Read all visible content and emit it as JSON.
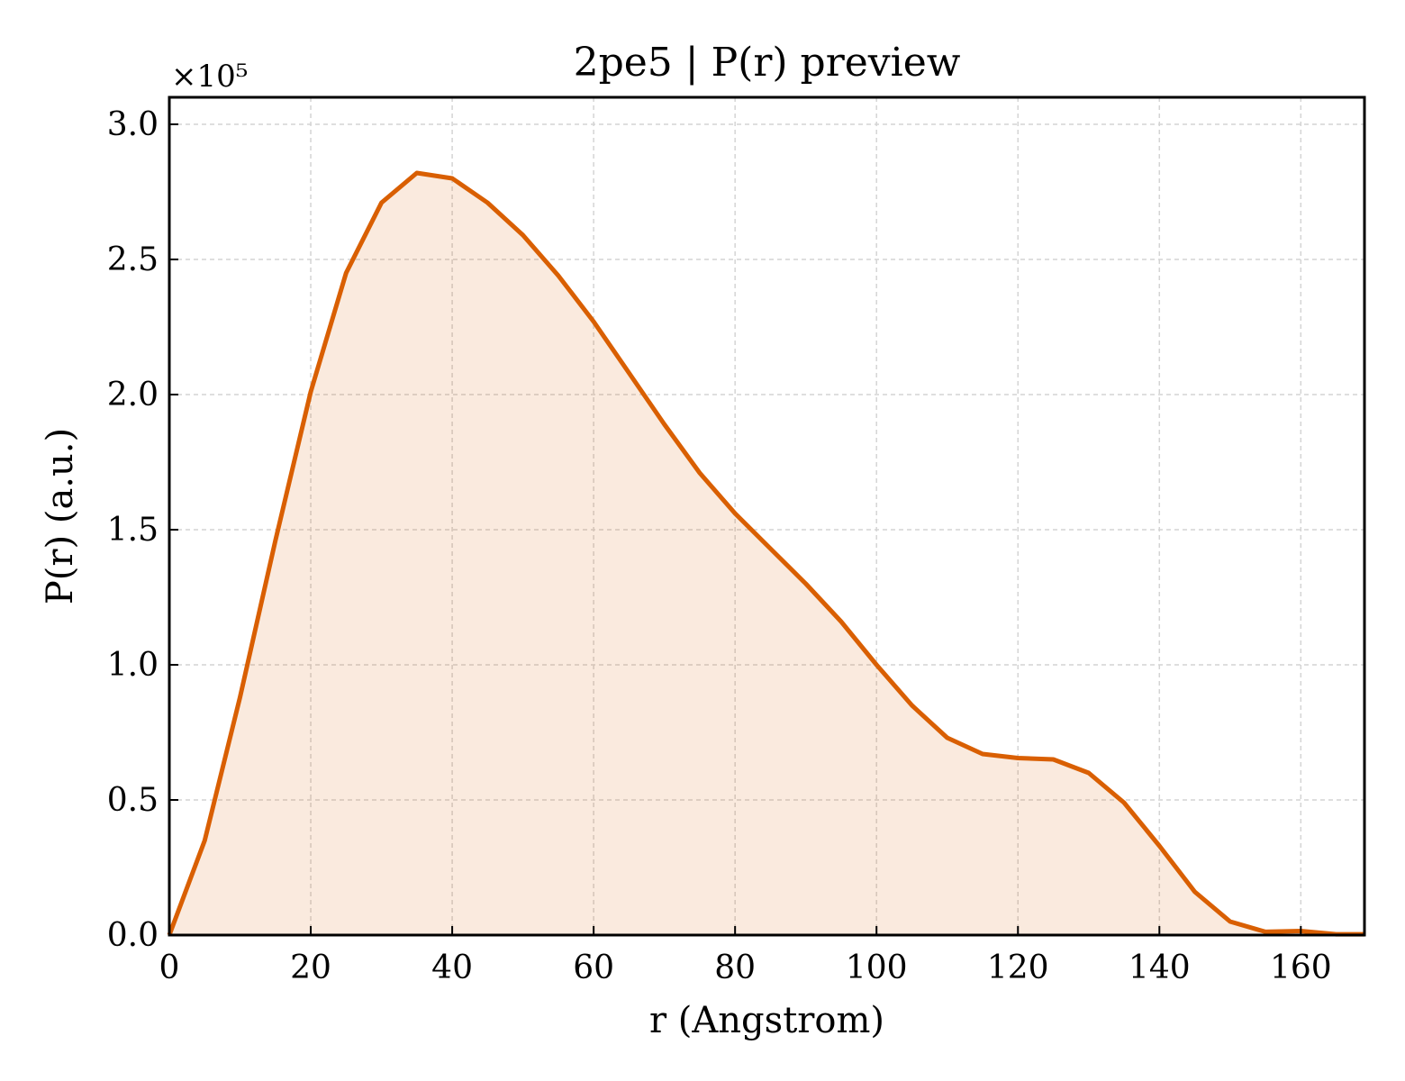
{
  "chart_data": {
    "type": "area",
    "title": "2pe5 | P(r) preview",
    "xlabel": "r (Angstrom)",
    "ylabel": "P(r) (a.u.)",
    "y_scale_label": "×10⁵",
    "y_multiplier": 100000,
    "xlim": [
      0,
      169
    ],
    "ylim": [
      0,
      3.1
    ],
    "x_ticks": [
      0,
      20,
      40,
      60,
      80,
      100,
      120,
      140,
      160
    ],
    "x_tick_labels": [
      "0",
      "20",
      "40",
      "60",
      "80",
      "100",
      "120",
      "140",
      "160"
    ],
    "y_ticks": [
      0,
      0.5,
      1.0,
      1.5,
      2.0,
      2.5,
      3.0
    ],
    "y_tick_labels": [
      "0.0",
      "0.5",
      "1.0",
      "1.5",
      "2.0",
      "2.5",
      "3.0"
    ],
    "grid": true,
    "legend": "none",
    "series": [
      {
        "color": "#d95f02",
        "fill_color": "#d95f02",
        "fill_opacity": 0.13,
        "x": [
          0,
          5,
          10,
          15,
          20,
          25,
          30,
          35,
          40,
          45,
          50,
          55,
          60,
          65,
          70,
          75,
          80,
          85,
          90,
          95,
          100,
          105,
          110,
          115,
          120,
          125,
          130,
          135,
          140,
          145,
          150,
          155,
          160,
          165,
          169
        ],
        "y": [
          0.0,
          0.35,
          0.88,
          1.46,
          2.01,
          2.45,
          2.71,
          2.82,
          2.8,
          2.71,
          2.59,
          2.44,
          2.27,
          2.08,
          1.89,
          1.71,
          1.56,
          1.43,
          1.3,
          1.16,
          1.0,
          0.85,
          0.73,
          0.67,
          0.655,
          0.65,
          0.6,
          0.49,
          0.33,
          0.16,
          0.05,
          0.012,
          0.015,
          0.003,
          0.003
        ]
      }
    ]
  }
}
